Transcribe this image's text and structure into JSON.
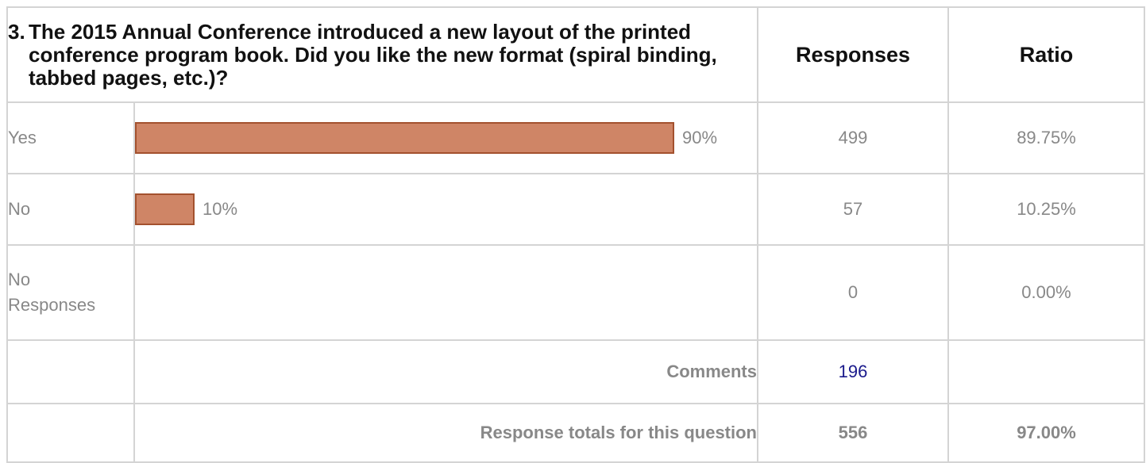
{
  "question": {
    "number": "3.",
    "text": "The 2015 Annual Conference introduced a new layout of the printed conference program book. Did you like the new format (spiral binding, tabbed pages, etc.)?"
  },
  "headers": {
    "responses": "Responses",
    "ratio": "Ratio"
  },
  "chart_data": {
    "type": "bar",
    "orientation": "horizontal",
    "categories": [
      "Yes",
      "No"
    ],
    "values": [
      90,
      10
    ],
    "value_labels": [
      "90%",
      "10%"
    ],
    "xlim": [
      0,
      100
    ],
    "bar_color": "#cf8566",
    "bar_border_color": "#a3512e"
  },
  "options": [
    {
      "label": "Yes",
      "percent_label": "90%",
      "responses": "499",
      "ratio": "89.75%"
    },
    {
      "label": "No",
      "percent_label": "10%",
      "responses": "57",
      "ratio": "10.25%"
    }
  ],
  "no_responses": {
    "label_line1": "No",
    "label_line2": "Responses",
    "responses": "0",
    "ratio": "0.00%"
  },
  "comments": {
    "label": "Comments",
    "count": "196"
  },
  "totals": {
    "label": "Response totals for this question",
    "responses": "556",
    "ratio": "97.00%"
  }
}
